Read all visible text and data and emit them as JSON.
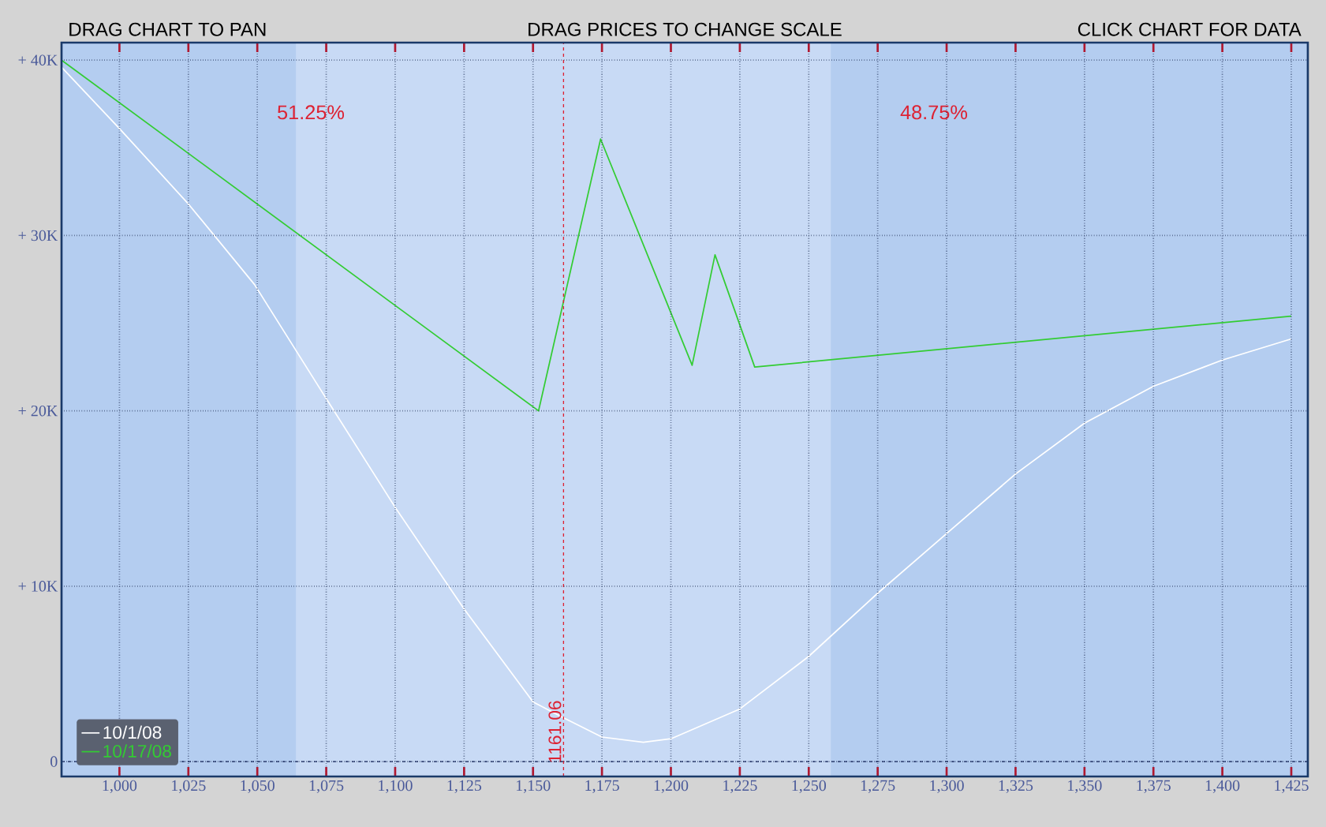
{
  "chart_data": {
    "type": "line",
    "annotations": [
      "DRAG CHART TO PAN",
      "DRAG PRICES TO CHANGE SCALE",
      "CLICK CHART FOR DATA",
      "51.25%",
      "48.75%"
    ],
    "series": [
      {
        "name": "10/1/08",
        "color": "#ffffff",
        "x": [
          979,
          1000,
          1025,
          1049,
          1075,
          1100,
          1125,
          1150,
          1161,
          1175,
          1190,
          1200,
          1225,
          1250,
          1275,
          1300,
          1325,
          1350,
          1375,
          1400,
          1425
        ],
        "values": [
          39.6,
          36.1,
          31.8,
          27.2,
          20.7,
          14.5,
          8.7,
          3.4,
          2.5,
          1.4,
          1.1,
          1.3,
          3.0,
          6.0,
          9.6,
          13.0,
          16.4,
          19.3,
          21.4,
          22.9,
          24.1
        ]
      },
      {
        "name": "10/17/08",
        "color": "#33cc33",
        "x": [
          979,
          1152,
          1174.5,
          1207.7,
          1216,
          1230.4,
          1425
        ],
        "values": [
          40,
          20,
          35.5,
          22.6,
          28.9,
          22.5,
          25.4
        ]
      }
    ],
    "xlim": [
      979,
      1431
    ],
    "ylim": [
      -0.85,
      41
    ],
    "xticks": [
      {
        "value": 1000,
        "label": "1,000"
      },
      {
        "value": 1025,
        "label": "1,025"
      },
      {
        "value": 1050,
        "label": "1,050"
      },
      {
        "value": 1075,
        "label": "1,075"
      },
      {
        "value": 1100,
        "label": "1,100"
      },
      {
        "value": 1125,
        "label": "1,125"
      },
      {
        "value": 1150,
        "label": "1,150"
      },
      {
        "value": 1175,
        "label": "1,175"
      },
      {
        "value": 1200,
        "label": "1,200"
      },
      {
        "value": 1225,
        "label": "1,225"
      },
      {
        "value": 1250,
        "label": "1,250"
      },
      {
        "value": 1275,
        "label": "1,275"
      },
      {
        "value": 1300,
        "label": "1,300"
      },
      {
        "value": 1325,
        "label": "1,325"
      },
      {
        "value": 1350,
        "label": "1,350"
      },
      {
        "value": 1375,
        "label": "1,375"
      },
      {
        "value": 1400,
        "label": "1,400"
      },
      {
        "value": 1425,
        "label": "1,425"
      }
    ],
    "yticks": [
      {
        "value": 0,
        "label": "0"
      },
      {
        "value": 10,
        "label": "+ 10K"
      },
      {
        "value": 20,
        "label": "+ 20K"
      },
      {
        "value": 30,
        "label": "+ 30K"
      },
      {
        "value": 40,
        "label": "+ 40K"
      }
    ],
    "grid": true,
    "legend": "bottom left",
    "ref_lines": [
      {
        "axis": "x",
        "value": 1161.06,
        "label": "1161.06",
        "color": "#dd2233",
        "line_style": "dashed"
      },
      {
        "axis": "y",
        "value": 0,
        "color": "#1a2a60",
        "line_style": "dashed"
      }
    ],
    "bands": [
      {
        "axis": "x",
        "from": 1064,
        "to": 1258,
        "color": "#c8daf5"
      }
    ]
  }
}
